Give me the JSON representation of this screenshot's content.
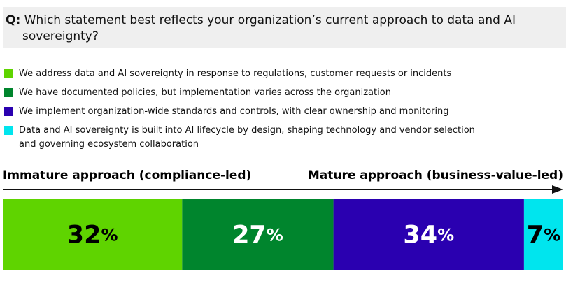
{
  "chart_data": {
    "type": "stacked-bar",
    "orientation": "horizontal",
    "title": "Q: Which statement best reflects your organization’s current approach to data and AI sovereignty?",
    "annotations": [
      "Immature approach (compliance-led)",
      "Mature approach (business-value-led)"
    ],
    "xlim": [
      0,
      100
    ],
    "series": [
      {
        "name": "We address data and AI sovereignty in response to regulations, customer requests or incidents",
        "color": "#5fd400",
        "values": [
          32
        ],
        "value_labels": [
          "32%"
        ]
      },
      {
        "name": "We have documented policies, but implementation varies across the organization",
        "color": "#00852d",
        "values": [
          27
        ],
        "value_labels": [
          "27%"
        ]
      },
      {
        "name": "We implement organization-wide standards and controls, with clear ownership and monitoring",
        "color": "#2a00b0",
        "values": [
          34
        ],
        "value_labels": [
          "34%"
        ]
      },
      {
        "name": "Data and AI sovereignty is built into AI lifecycle by design, shaping technology and vendor selection and governing ecosystem collaboration",
        "color": "#00e5ee",
        "values": [
          7
        ],
        "value_labels": [
          "7%"
        ]
      }
    ]
  }
}
